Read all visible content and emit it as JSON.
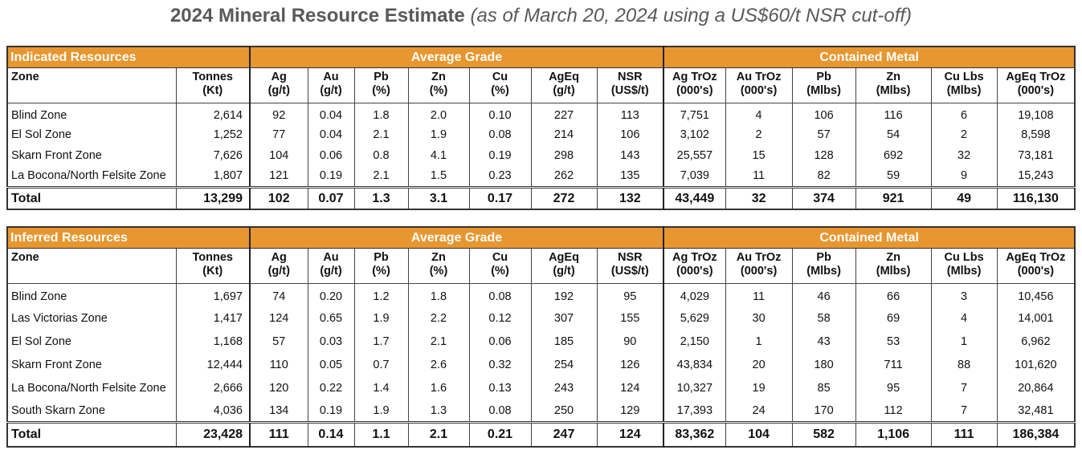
{
  "title": {
    "bold": "2024 Mineral Resource Estimate",
    "italic": "(as of March 20, 2024 using a US$60/t NSR cut-off)"
  },
  "colors": {
    "band": "#E8962F"
  },
  "groups": {
    "average_grade": "Average Grade",
    "contained_metal": "Contained Metal"
  },
  "columns": [
    [
      "Zone",
      ""
    ],
    [
      "Tonnes",
      "(Kt)"
    ],
    [
      "Ag",
      "(g/t)"
    ],
    [
      "Au",
      "(g/t)"
    ],
    [
      "Pb",
      "(%)"
    ],
    [
      "Zn",
      "(%)"
    ],
    [
      "Cu",
      "(%)"
    ],
    [
      "AgEq",
      "(g/t)"
    ],
    [
      "NSR",
      "(US$/t)"
    ],
    [
      "Ag TrOz",
      "(000's)"
    ],
    [
      "Au TrOz",
      "(000's)"
    ],
    [
      "Pb",
      "(Mlbs)"
    ],
    [
      "Zn",
      "(Mlbs)"
    ],
    [
      "Cu Lbs",
      "(Mlbs)"
    ],
    [
      "AgEq TrOz",
      "(000's)"
    ]
  ],
  "tables": [
    {
      "label": "Indicated Resources",
      "rows": [
        [
          "Blind Zone",
          "2,614",
          "92",
          "0.04",
          "1.8",
          "2.0",
          "0.10",
          "227",
          "113",
          "7,751",
          "4",
          "106",
          "116",
          "6",
          "19,108"
        ],
        [
          "El Sol Zone",
          "1,252",
          "77",
          "0.04",
          "2.1",
          "1.9",
          "0.08",
          "214",
          "106",
          "3,102",
          "2",
          "57",
          "54",
          "2",
          "8,598"
        ],
        [
          "Skarn Front Zone",
          "7,626",
          "104",
          "0.06",
          "0.8",
          "4.1",
          "0.19",
          "298",
          "143",
          "25,557",
          "15",
          "128",
          "692",
          "32",
          "73,181"
        ],
        [
          "La Bocona/North Felsite Zone",
          "1,807",
          "121",
          "0.19",
          "2.1",
          "1.5",
          "0.23",
          "262",
          "135",
          "7,039",
          "11",
          "82",
          "59",
          "9",
          "15,243"
        ]
      ],
      "total": [
        "Total",
        "13,299",
        "102",
        "0.07",
        "1.3",
        "3.1",
        "0.17",
        "272",
        "132",
        "43,449",
        "32",
        "374",
        "921",
        "49",
        "116,130"
      ]
    },
    {
      "label": "Inferred Resources",
      "rows": [
        [
          "Blind Zone",
          "1,697",
          "74",
          "0.20",
          "1.2",
          "1.8",
          "0.08",
          "192",
          "95",
          "4,029",
          "11",
          "46",
          "66",
          "3",
          "10,456"
        ],
        [
          "Las Victorias Zone",
          "1,417",
          "124",
          "0.65",
          "1.9",
          "2.2",
          "0.12",
          "307",
          "155",
          "5,629",
          "30",
          "58",
          "69",
          "4",
          "14,001"
        ],
        [
          "El Sol Zone",
          "1,168",
          "57",
          "0.03",
          "1.7",
          "2.1",
          "0.06",
          "185",
          "90",
          "2,150",
          "1",
          "43",
          "53",
          "1",
          "6,962"
        ],
        [
          "Skarn Front Zone",
          "12,444",
          "110",
          "0.05",
          "0.7",
          "2.6",
          "0.32",
          "254",
          "126",
          "43,834",
          "20",
          "180",
          "711",
          "88",
          "101,620"
        ],
        [
          "La Bocona/North Felsite Zone",
          "2,666",
          "120",
          "0.22",
          "1.4",
          "1.6",
          "0.13",
          "243",
          "124",
          "10,327",
          "19",
          "85",
          "95",
          "7",
          "20,864"
        ],
        [
          "South Skarn Zone",
          "4,036",
          "134",
          "0.19",
          "1.9",
          "1.3",
          "0.08",
          "250",
          "129",
          "17,393",
          "24",
          "170",
          "112",
          "7",
          "32,481"
        ]
      ],
      "total": [
        "Total",
        "23,428",
        "111",
        "0.14",
        "1.1",
        "2.1",
        "0.21",
        "247",
        "124",
        "83,362",
        "104",
        "582",
        "1,106",
        "111",
        "186,384"
      ]
    }
  ]
}
